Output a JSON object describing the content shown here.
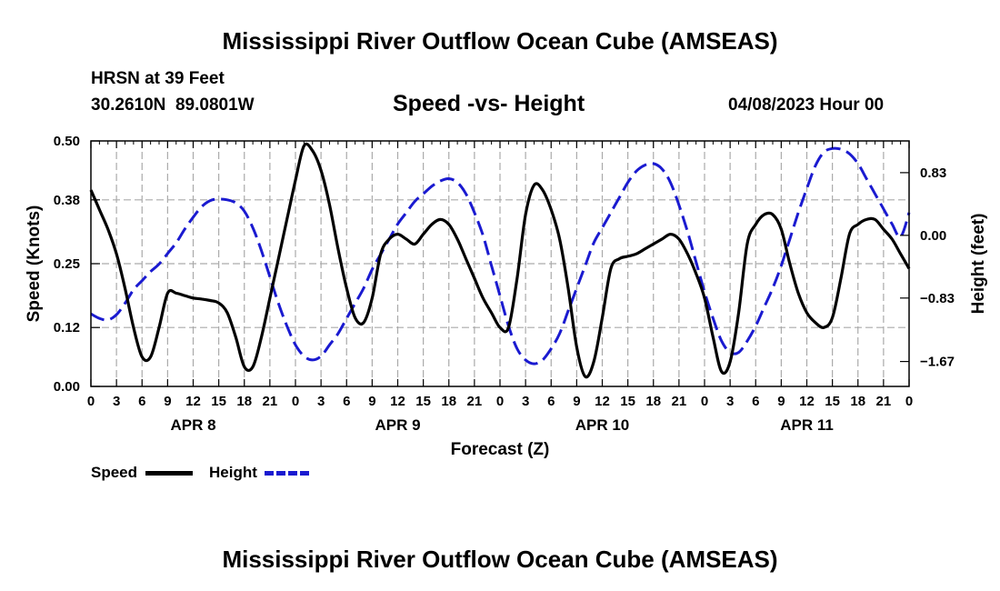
{
  "header": {
    "title": "Mississippi River Outflow Ocean Cube (AMSEAS)",
    "station": "HRSN at 39 Feet",
    "coords": "30.2610N  89.0801W",
    "subtitle": "Speed -vs- Height",
    "datetime": "04/08/2023 Hour 00",
    "footer_title": "Mississippi River Outflow Ocean Cube (AMSEAS)"
  },
  "legend": {
    "speed_label": "Speed",
    "height_label": "Height"
  },
  "colors": {
    "speed": "#000000",
    "height": "#1a1ad0",
    "grid": "#aaaaaa"
  },
  "chart_data": {
    "type": "line",
    "title": "Speed -vs- Height",
    "xlabel": "Forecast (Z)",
    "ylabel": "Speed (Knots)",
    "y2label": "Height (feet)",
    "xlim": [
      0,
      96
    ],
    "ylim": [
      0,
      0.5
    ],
    "y2lim": [
      -2.0,
      1.25
    ],
    "x_ticks": [
      0,
      3,
      6,
      9,
      12,
      15,
      18,
      21,
      24,
      27,
      30,
      33,
      36,
      39,
      42,
      45,
      48,
      51,
      54,
      57,
      60,
      63,
      66,
      69,
      72,
      75,
      78,
      81,
      84,
      87,
      90,
      93,
      96
    ],
    "x_tick_labels": [
      "0",
      "3",
      "6",
      "9",
      "12",
      "15",
      "18",
      "21",
      "0",
      "3",
      "6",
      "9",
      "12",
      "15",
      "18",
      "21",
      "0",
      "3",
      "6",
      "9",
      "12",
      "15",
      "18",
      "21",
      "0",
      "3",
      "6",
      "9",
      "12",
      "15",
      "18",
      "21",
      "0"
    ],
    "day_labels": [
      {
        "x": 12,
        "label": "APR 8"
      },
      {
        "x": 36,
        "label": "APR 9"
      },
      {
        "x": 60,
        "label": "APR 10"
      },
      {
        "x": 84,
        "label": "APR 11"
      }
    ],
    "y_ticks": [
      0.0,
      0.12,
      0.25,
      0.38,
      0.5
    ],
    "y_tick_labels": [
      "0.00",
      "0.12",
      "0.25",
      "0.38",
      "0.50"
    ],
    "y2_ticks": [
      -1.67,
      -0.83,
      0.0,
      0.83
    ],
    "y2_tick_labels": [
      "−1.67",
      "−0.83",
      "0.00",
      "0.83"
    ],
    "series": [
      {
        "name": "Speed",
        "axis": "left",
        "style": "solid",
        "x": [
          0,
          1,
          2,
          3,
          4,
          5,
          6,
          7,
          8,
          9,
          10,
          11,
          12,
          13,
          14,
          15,
          16,
          17,
          18,
          19,
          20,
          21,
          22,
          23,
          24,
          25,
          26,
          27,
          28,
          29,
          30,
          31,
          32,
          33,
          34,
          35,
          36,
          37,
          38,
          39,
          40,
          41,
          42,
          43,
          44,
          45,
          46,
          47,
          48,
          49,
          50,
          51,
          52,
          53,
          54,
          55,
          56,
          57,
          58,
          59,
          60,
          61,
          62,
          63,
          64,
          65,
          66,
          67,
          68,
          69,
          70,
          71,
          72,
          73,
          74,
          75,
          76,
          77,
          78,
          79,
          80,
          81,
          82,
          83,
          84,
          85,
          86,
          87,
          88,
          89,
          90,
          91,
          92,
          93,
          94,
          95,
          96
        ],
        "values": [
          0.4,
          0.36,
          0.32,
          0.27,
          0.2,
          0.12,
          0.06,
          0.06,
          0.12,
          0.19,
          0.19,
          0.185,
          0.18,
          0.178,
          0.175,
          0.17,
          0.15,
          0.1,
          0.04,
          0.04,
          0.1,
          0.18,
          0.26,
          0.34,
          0.42,
          0.49,
          0.48,
          0.44,
          0.37,
          0.28,
          0.2,
          0.14,
          0.13,
          0.18,
          0.27,
          0.3,
          0.31,
          0.3,
          0.29,
          0.31,
          0.33,
          0.34,
          0.33,
          0.3,
          0.26,
          0.22,
          0.18,
          0.15,
          0.12,
          0.12,
          0.22,
          0.35,
          0.41,
          0.4,
          0.36,
          0.3,
          0.2,
          0.08,
          0.02,
          0.05,
          0.14,
          0.24,
          0.26,
          0.265,
          0.27,
          0.28,
          0.29,
          0.3,
          0.31,
          0.3,
          0.27,
          0.23,
          0.18,
          0.1,
          0.03,
          0.05,
          0.15,
          0.29,
          0.33,
          0.35,
          0.35,
          0.32,
          0.25,
          0.19,
          0.15,
          0.13,
          0.12,
          0.14,
          0.22,
          0.31,
          0.33,
          0.34,
          0.34,
          0.32,
          0.3,
          0.27,
          0.24
        ]
      },
      {
        "name": "Height",
        "axis": "right",
        "style": "dashed",
        "x": [
          0,
          1,
          2,
          3,
          4,
          5,
          6,
          7,
          8,
          9,
          10,
          11,
          12,
          13,
          14,
          15,
          16,
          17,
          18,
          19,
          20,
          21,
          22,
          23,
          24,
          25,
          26,
          27,
          28,
          29,
          30,
          31,
          32,
          33,
          34,
          35,
          36,
          37,
          38,
          39,
          40,
          41,
          42,
          43,
          44,
          45,
          46,
          47,
          48,
          49,
          50,
          51,
          52,
          53,
          54,
          55,
          56,
          57,
          58,
          59,
          60,
          61,
          62,
          63,
          64,
          65,
          66,
          67,
          68,
          69,
          70,
          71,
          72,
          73,
          74,
          75,
          76,
          77,
          78,
          79,
          80,
          81,
          82,
          83,
          84,
          85,
          86,
          87,
          88,
          89,
          90,
          91,
          92,
          93,
          94,
          95,
          96
        ],
        "values": [
          -1.04,
          -1.1,
          -1.12,
          -1.05,
          -0.9,
          -0.72,
          -0.6,
          -0.48,
          -0.38,
          -0.24,
          -0.1,
          0.08,
          0.24,
          0.38,
          0.46,
          0.48,
          0.47,
          0.43,
          0.32,
          0.1,
          -0.2,
          -0.55,
          -0.9,
          -1.2,
          -1.45,
          -1.6,
          -1.65,
          -1.6,
          -1.45,
          -1.3,
          -1.1,
          -0.9,
          -0.7,
          -0.45,
          -0.25,
          -0.05,
          0.15,
          0.3,
          0.45,
          0.55,
          0.65,
          0.72,
          0.75,
          0.7,
          0.55,
          0.3,
          0.0,
          -0.4,
          -0.8,
          -1.2,
          -1.5,
          -1.65,
          -1.7,
          -1.65,
          -1.5,
          -1.3,
          -1.0,
          -0.7,
          -0.4,
          -0.1,
          0.1,
          0.3,
          0.5,
          0.7,
          0.85,
          0.93,
          0.95,
          0.88,
          0.7,
          0.4,
          0.05,
          -0.35,
          -0.75,
          -1.1,
          -1.4,
          -1.55,
          -1.55,
          -1.4,
          -1.2,
          -0.95,
          -0.7,
          -0.4,
          -0.05,
          0.3,
          0.62,
          0.92,
          1.1,
          1.15,
          1.14,
          1.08,
          0.95,
          0.75,
          0.55,
          0.35,
          0.15,
          -0.02,
          0.3
        ]
      }
    ]
  }
}
